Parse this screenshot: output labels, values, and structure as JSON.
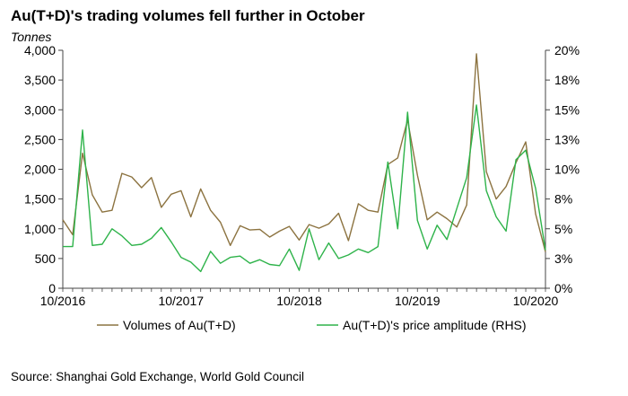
{
  "header": {
    "title": "Au(T+D)'s trading volumes fell further in October",
    "unit_label": "Tonnes"
  },
  "footer": {
    "source": "Source: Shanghai Gold Exchange, World Gold Council"
  },
  "chart_data": {
    "type": "line",
    "x_tick_labels": [
      "10/2016",
      "10/2017",
      "10/2018",
      "10/2019",
      "10/2020"
    ],
    "y_left": {
      "label": "Tonnes",
      "ticks": [
        "0",
        "500",
        "1,000",
        "1,500",
        "2,000",
        "2,500",
        "3,000",
        "3,500",
        "4,000"
      ],
      "ylim": [
        0,
        4000
      ]
    },
    "y_right": {
      "ticks": [
        "0%",
        "3%",
        "5%",
        "8%",
        "10%",
        "13%",
        "15%",
        "18%",
        "20%"
      ],
      "ylim": [
        0,
        20
      ]
    },
    "grid": false,
    "legend_position": "bottom",
    "series": [
      {
        "name": "Volumes of Au(T+D)",
        "axis": "left",
        "color": "#8c7340",
        "values": [
          1150,
          900,
          2270,
          1570,
          1280,
          1310,
          1930,
          1870,
          1690,
          1860,
          1360,
          1580,
          1640,
          1200,
          1670,
          1310,
          1110,
          720,
          1050,
          980,
          990,
          860,
          960,
          1040,
          810,
          1070,
          1010,
          1080,
          1260,
          800,
          1420,
          1310,
          1280,
          2080,
          2190,
          2830,
          1900,
          1150,
          1280,
          1170,
          1030,
          1400,
          3940,
          1960,
          1500,
          1710,
          2110,
          2460,
          1250,
          610
        ]
      },
      {
        "name": "Au(T+D)'s price amplitude (RHS)",
        "axis": "right",
        "color": "#2eb34a",
        "values": [
          3.5,
          3.5,
          13.3,
          3.6,
          3.7,
          5.0,
          4.4,
          3.6,
          3.7,
          4.2,
          5.1,
          3.9,
          2.6,
          2.2,
          1.4,
          3.1,
          2.1,
          2.6,
          2.7,
          2.1,
          2.4,
          2.0,
          1.9,
          3.3,
          1.5,
          5.0,
          2.4,
          3.8,
          2.5,
          2.8,
          3.3,
          3.0,
          3.5,
          10.6,
          5.0,
          14.8,
          5.7,
          3.3,
          5.3,
          4.1,
          6.7,
          9.3,
          15.4,
          8.2,
          6.0,
          4.8,
          10.8,
          11.6,
          8.4,
          3.2
        ]
      }
    ]
  }
}
